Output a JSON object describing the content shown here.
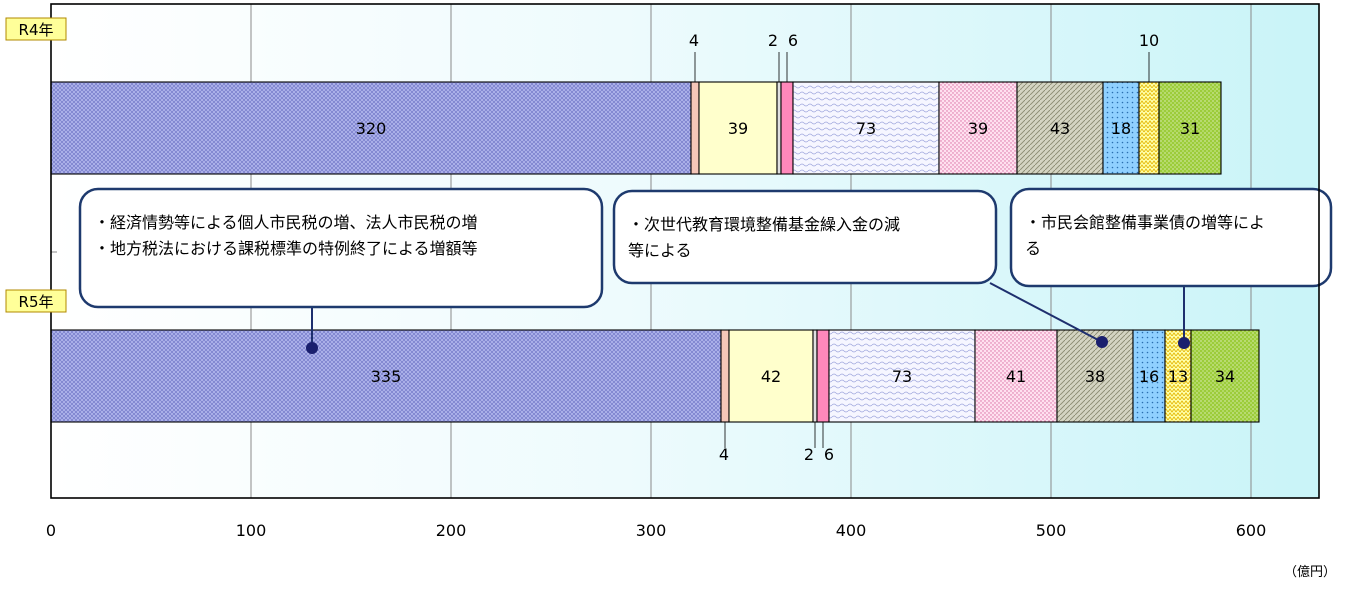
{
  "chart_data": {
    "type": "bar",
    "orientation": "horizontal",
    "stacked": true,
    "unit": "（億円）",
    "xlim": [
      0,
      620
    ],
    "x_ticks": [
      0,
      100,
      200,
      300,
      400,
      500,
      600
    ],
    "grid": true,
    "categories": [
      "R4年",
      "R5年"
    ],
    "segments": [
      {
        "values": [
          320,
          335
        ],
        "color": "#aab0e8",
        "pattern": "crosshatch"
      },
      {
        "values": [
          4,
          4
        ],
        "color": "#f4c6b8",
        "pattern": "solid"
      },
      {
        "values": [
          39,
          42
        ],
        "color": "#ffffcc",
        "pattern": "solid"
      },
      {
        "values": [
          2,
          2
        ],
        "color": "#e0e0e0",
        "pattern": "solid"
      },
      {
        "values": [
          6,
          6
        ],
        "color": "#ff88bb",
        "pattern": "solid"
      },
      {
        "values": [
          73,
          73
        ],
        "color": "#eef0ff",
        "pattern": "wave"
      },
      {
        "values": [
          39,
          41
        ],
        "color": "#ffd0e6",
        "pattern": "dots"
      },
      {
        "values": [
          43,
          38
        ],
        "color": "#c4c4b0",
        "pattern": "diagonal"
      },
      {
        "values": [
          18,
          16
        ],
        "color": "#88ccff",
        "pattern": "dots"
      },
      {
        "values": [
          10,
          13
        ],
        "color": "#ffff99",
        "pattern": "zigzag"
      },
      {
        "values": [
          31,
          34
        ],
        "color": "#99cc33",
        "pattern": "dots"
      }
    ],
    "segment_labels": [
      [
        "320",
        "4",
        "39",
        "2",
        "6",
        "73",
        "39",
        "43",
        "18",
        "10",
        "31"
      ],
      [
        "335",
        "4",
        "42",
        "2",
        "6",
        "73",
        "41",
        "38",
        "16",
        "13",
        "34"
      ]
    ]
  },
  "callouts": [
    {
      "lines": [
        "・経済情勢等による個人市民税の増、法人市民税の増",
        "・地方税法における課税標準の特例終了による増額等"
      ]
    },
    {
      "lines": [
        "・次世代教育環境整備基金繰入金の減",
        "等による"
      ]
    },
    {
      "lines": [
        "・市民会館整備事業債の増等によ",
        "る"
      ]
    }
  ]
}
